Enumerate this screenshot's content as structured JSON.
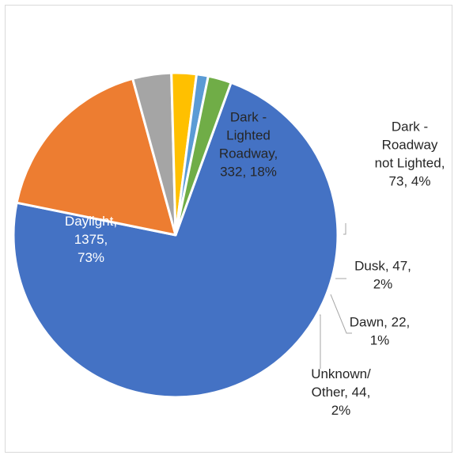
{
  "chart_data": {
    "type": "pie",
    "title": "",
    "slices": [
      {
        "name": "Daylight",
        "value": 1375,
        "percent": "73%",
        "color": "#4472C4",
        "label_lines": [
          "Daylight,",
          "1375,",
          "73%"
        ],
        "label_color": "#ffffff"
      },
      {
        "name": "Dark - Lighted Roadway",
        "value": 332,
        "percent": "18%",
        "color": "#ED7D31",
        "label_lines": [
          "Dark -",
          "Lighted",
          "Roadway,",
          "332, 18%"
        ],
        "label_color": "#262626"
      },
      {
        "name": "Dark - Roadway not Lighted",
        "value": 73,
        "percent": "4%",
        "color": "#A5A5A5",
        "label_lines": [
          "Dark -",
          "Roadway",
          "not Lighted,",
          "73, 4%"
        ],
        "label_color": "#262626"
      },
      {
        "name": "Dusk",
        "value": 47,
        "percent": "2%",
        "color": "#FFC000",
        "label_lines": [
          "Dusk, 47,",
          "2%"
        ],
        "label_color": "#262626"
      },
      {
        "name": "Dawn",
        "value": 22,
        "percent": "1%",
        "color": "#5B9BD5",
        "label_lines": [
          "Dawn, 22,",
          "1%"
        ],
        "label_color": "#262626"
      },
      {
        "name": "Unknown/ Other",
        "value": 44,
        "percent": "2%",
        "color": "#70AD47",
        "label_lines": [
          "Unknown/",
          "Other, 44,",
          "2%"
        ],
        "label_color": "#262626"
      }
    ],
    "start_angle_deg": 20,
    "legend": "none"
  }
}
